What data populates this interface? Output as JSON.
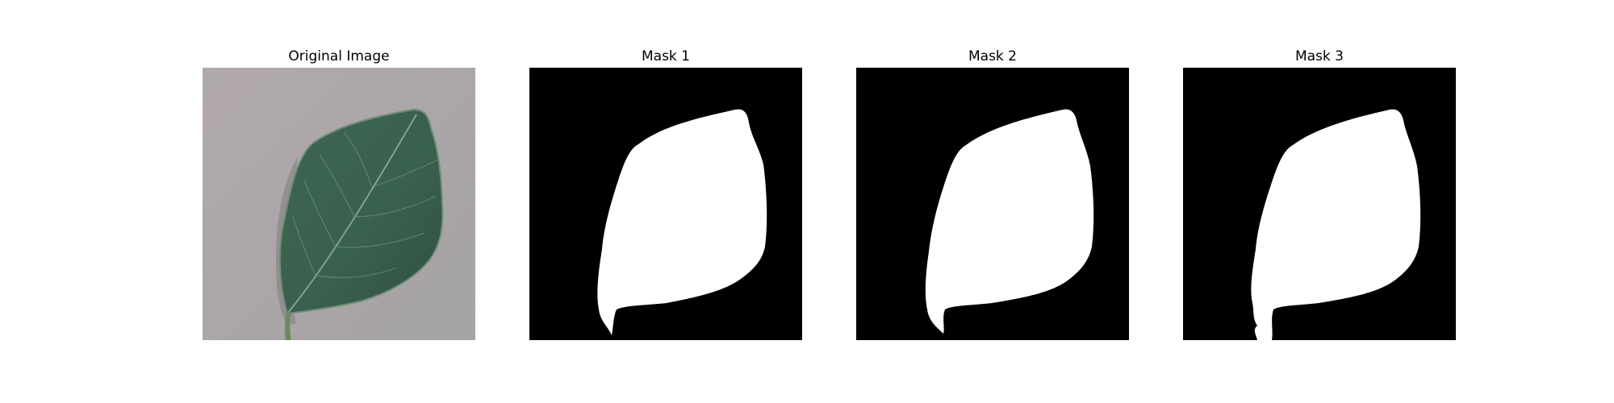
{
  "panels": [
    {
      "title": "Original Image",
      "kind": "photo"
    },
    {
      "title": "Mask 1",
      "kind": "mask"
    },
    {
      "title": "Mask 2",
      "kind": "mask"
    },
    {
      "title": "Mask 3",
      "kind": "mask"
    }
  ],
  "colors": {
    "background": "#ffffff",
    "mask_background": "#000000",
    "mask_foreground": "#ffffff",
    "photo_background": "#aba7a9",
    "leaf": "#3c6150",
    "leaf_dark": "#2f4f41",
    "leaf_edge": "#6d8a72",
    "vein": "#8fae95"
  }
}
